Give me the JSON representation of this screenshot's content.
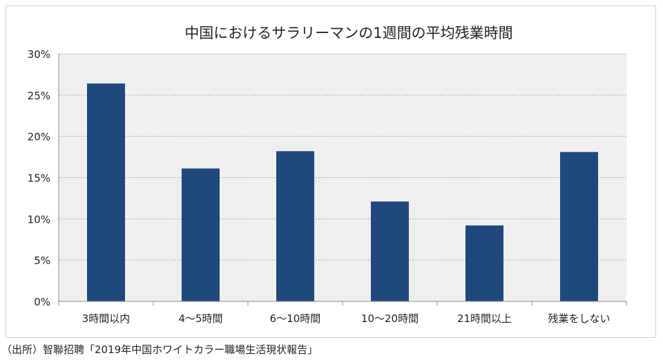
{
  "source_note": "（出所）智聯招聘「2019年中国ホワイトカラー職場生活現状報告」",
  "chart_data": {
    "type": "bar",
    "title": "中国におけるサラリーマンの1週間の平均残業時間",
    "categories": [
      "3時間以内",
      "4～5時間",
      "6～10時間",
      "10～20時間",
      "21時間以上",
      "残業をしない"
    ],
    "values": [
      26.4,
      16.1,
      18.2,
      12.1,
      9.2,
      18.1
    ],
    "ylim": [
      0,
      30
    ],
    "ytick_values": [
      0,
      5,
      10,
      15,
      20,
      25,
      30
    ],
    "ytick_labels": [
      "0%",
      "5%",
      "10%",
      "15%",
      "20%",
      "25%",
      "30%"
    ],
    "xlabel": "",
    "ylabel": "",
    "grid": true,
    "legend": "none",
    "colors": {
      "bar": "#1f497d",
      "plot_bg": "#efefef",
      "grid": "#a6a6a6",
      "axis": "#8c8c8c"
    }
  }
}
